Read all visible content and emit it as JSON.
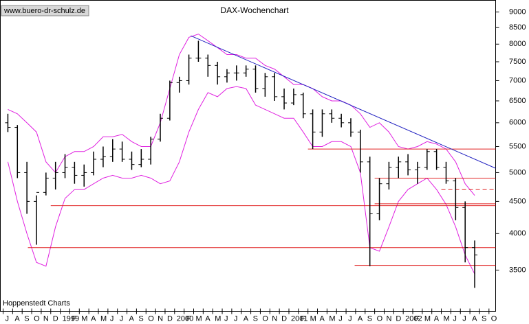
{
  "chart_data": {
    "type": "ohlc",
    "title": "DAX-Wochenchart",
    "source": "www.buero-dr-schulz.de",
    "footer": "Hoppenstedt Charts",
    "log_scale": true,
    "color": "#000000",
    "x": [
      0.5,
      1.5,
      2.5,
      3.5,
      4.5,
      5.5,
      6.5,
      7.5,
      8.5,
      9.5,
      10.5,
      11.5,
      12.5,
      13.5,
      14.5,
      15.5,
      16.5,
      17.5,
      18.5,
      19.5,
      20.5,
      21.5,
      22.5,
      23.5,
      24.5,
      25.5,
      26.5,
      27.5,
      28.5,
      29.5,
      30.5,
      31.5,
      32.5,
      33.5,
      34.5,
      35.5,
      36.5,
      37.5,
      38.5,
      39.5,
      40.5,
      41.5,
      42.5,
      43.5,
      44.5,
      45.5,
      46.5,
      47.5,
      48.5,
      49.5
    ],
    "open": [
      6000,
      5900,
      5000,
      4500,
      4650,
      4900,
      5000,
      5100,
      4950,
      5000,
      5250,
      5300,
      5450,
      5250,
      5150,
      5250,
      5650,
      6100,
      6950,
      7000,
      7600,
      7600,
      7400,
      7100,
      7200,
      7200,
      7300,
      6800,
      7100,
      6600,
      6450,
      6650,
      6200,
      5800,
      6200,
      6100,
      6000,
      5800,
      5200,
      4300,
      4800,
      5100,
      5200,
      5050,
      5100,
      5400,
      5100,
      4850,
      4400,
      3800
    ],
    "high": [
      6200,
      5950,
      5200,
      4600,
      5000,
      5200,
      5350,
      5200,
      5150,
      5400,
      5500,
      5650,
      5600,
      5400,
      5450,
      5700,
      6200,
      7000,
      7100,
      7700,
      8100,
      7700,
      7500,
      7300,
      7400,
      7400,
      7400,
      7200,
      7200,
      6800,
      6800,
      6700,
      6300,
      6300,
      6300,
      6200,
      6100,
      5850,
      5300,
      4900,
      5200,
      5300,
      5350,
      5200,
      5450,
      5450,
      5200,
      4900,
      4500,
      3900
    ],
    "low": [
      5800,
      4900,
      4300,
      3840,
      4600,
      4700,
      4900,
      4800,
      4750,
      4950,
      5100,
      5200,
      5200,
      5050,
      5100,
      5150,
      5600,
      6050,
      6700,
      6900,
      7500,
      7100,
      6900,
      6950,
      7000,
      7100,
      6700,
      6600,
      6500,
      6300,
      6400,
      6100,
      5450,
      5700,
      6000,
      5900,
      5700,
      5000,
      3550,
      4200,
      4700,
      4900,
      4950,
      4800,
      5050,
      5050,
      4800,
      4200,
      3600,
      3280
    ],
    "close": [
      5900,
      5000,
      4500,
      4650,
      4900,
      5000,
      5100,
      4950,
      5000,
      5250,
      5300,
      5450,
      5250,
      5150,
      5250,
      5650,
      6100,
      6950,
      7000,
      7600,
      7600,
      7400,
      7100,
      7200,
      7200,
      7300,
      6800,
      7100,
      6600,
      6450,
      6650,
      6200,
      5800,
      6200,
      6100,
      6000,
      5800,
      5200,
      4300,
      4800,
      5100,
      5200,
      5050,
      5100,
      5400,
      5100,
      4850,
      4400,
      3800,
      3700
    ],
    "bands": [
      {
        "color": "#e020e0",
        "values": [
          6300,
          6200,
          6000,
          5800,
          5200,
          5000,
          5300,
          5400,
          5400,
          5500,
          5700,
          5700,
          5750,
          5600,
          5500,
          5500,
          6000,
          6800,
          7700,
          8200,
          8300,
          8100,
          7900,
          7700,
          7700,
          7600,
          7600,
          7400,
          7300,
          7100,
          6900,
          6900,
          6800,
          6600,
          6500,
          6500,
          6400,
          6200,
          5900,
          6000,
          5800,
          5500,
          5450,
          5500,
          5600,
          5550,
          5450,
          5200,
          4800,
          4600
        ]
      },
      {
        "color": "#e020e0",
        "values": [
          5200,
          4500,
          4000,
          3600,
          3550,
          4100,
          4550,
          4700,
          4700,
          4800,
          4900,
          4950,
          4900,
          4900,
          4950,
          4900,
          4800,
          4850,
          5200,
          5800,
          6300,
          6700,
          6600,
          6800,
          6850,
          6800,
          6400,
          6300,
          6200,
          6100,
          6100,
          5800,
          5500,
          5500,
          5600,
          5600,
          5500,
          5000,
          3800,
          3750,
          4100,
          4500,
          4700,
          4800,
          4900,
          4700,
          4450,
          4100,
          3700,
          3450
        ]
      }
    ],
    "levels": [
      {
        "value": 5450,
        "from": 32,
        "color": "#e02020",
        "style": "solid"
      },
      {
        "value": 4900,
        "from": 39,
        "color": "#e02020",
        "style": "solid"
      },
      {
        "value": 4700,
        "from": 46,
        "color": "#e02020",
        "style": "dashed"
      },
      {
        "value": 4460,
        "from": 39,
        "color": "#e02020",
        "style": "solid"
      },
      {
        "value": 4430,
        "from": 5,
        "color": "#e02020",
        "style": "solid"
      },
      {
        "value": 3800,
        "from": 2.6,
        "color": "#e02020",
        "style": "solid"
      },
      {
        "value": 3560,
        "from": 36.9,
        "color": "#e02020",
        "style": "solid"
      }
    ],
    "trendline": {
      "color": "#2020c0",
      "x": [
        19.7,
        51.7
      ],
      "y": [
        8250,
        5080
      ]
    },
    "xlim": [
      -0.29,
      51.7
    ],
    "ylim": [
      3010,
      9390
    ],
    "yticks": [
      3500,
      4000,
      4500,
      5000,
      5500,
      6000,
      6500,
      7000,
      7500,
      8000,
      8500,
      9000
    ],
    "xticks": [
      {
        "value": 0,
        "label": "J"
      },
      {
        "value": 1,
        "label": "A"
      },
      {
        "value": 2,
        "label": "S"
      },
      {
        "value": 3,
        "label": "O"
      },
      {
        "value": 4,
        "label": "N"
      },
      {
        "value": 5,
        "label": "D"
      },
      {
        "value": 6,
        "label": "1999"
      },
      {
        "value": 7,
        "label": "F"
      },
      {
        "value": 8,
        "label": "M"
      },
      {
        "value": 9,
        "label": "A"
      },
      {
        "value": 10,
        "label": "M"
      },
      {
        "value": 11,
        "label": "J"
      },
      {
        "value": 12,
        "label": "J"
      },
      {
        "value": 13,
        "label": "A"
      },
      {
        "value": 14,
        "label": "S"
      },
      {
        "value": 15,
        "label": "O"
      },
      {
        "value": 16,
        "label": "N"
      },
      {
        "value": 17,
        "label": "D"
      },
      {
        "value": 18,
        "label": "2000"
      },
      {
        "value": 19,
        "label": "F"
      },
      {
        "value": 20,
        "label": "M"
      },
      {
        "value": 21,
        "label": "A"
      },
      {
        "value": 22,
        "label": "M"
      },
      {
        "value": 23,
        "label": "J"
      },
      {
        "value": 24,
        "label": "J"
      },
      {
        "value": 25,
        "label": "A"
      },
      {
        "value": 26,
        "label": "S"
      },
      {
        "value": 27,
        "label": "O"
      },
      {
        "value": 28,
        "label": "N"
      },
      {
        "value": 29,
        "label": "D"
      },
      {
        "value": 30,
        "label": "2001"
      },
      {
        "value": 31,
        "label": "F"
      },
      {
        "value": 32,
        "label": "M"
      },
      {
        "value": 33,
        "label": "A"
      },
      {
        "value": 34,
        "label": "M"
      },
      {
        "value": 35,
        "label": "J"
      },
      {
        "value": 36,
        "label": "J"
      },
      {
        "value": 37,
        "label": "A"
      },
      {
        "value": 38,
        "label": "S"
      },
      {
        "value": 39,
        "label": "O"
      },
      {
        "value": 40,
        "label": "N"
      },
      {
        "value": 41,
        "label": "D"
      },
      {
        "value": 42,
        "label": "2002"
      },
      {
        "value": 43,
        "label": "F"
      },
      {
        "value": 44,
        "label": "M"
      },
      {
        "value": 45,
        "label": "A"
      },
      {
        "value": 46,
        "label": "M"
      },
      {
        "value": 47,
        "label": "J"
      },
      {
        "value": 48,
        "label": "J"
      },
      {
        "value": 49,
        "label": "A"
      },
      {
        "value": 50,
        "label": "S"
      },
      {
        "value": 51,
        "label": "O"
      }
    ]
  }
}
